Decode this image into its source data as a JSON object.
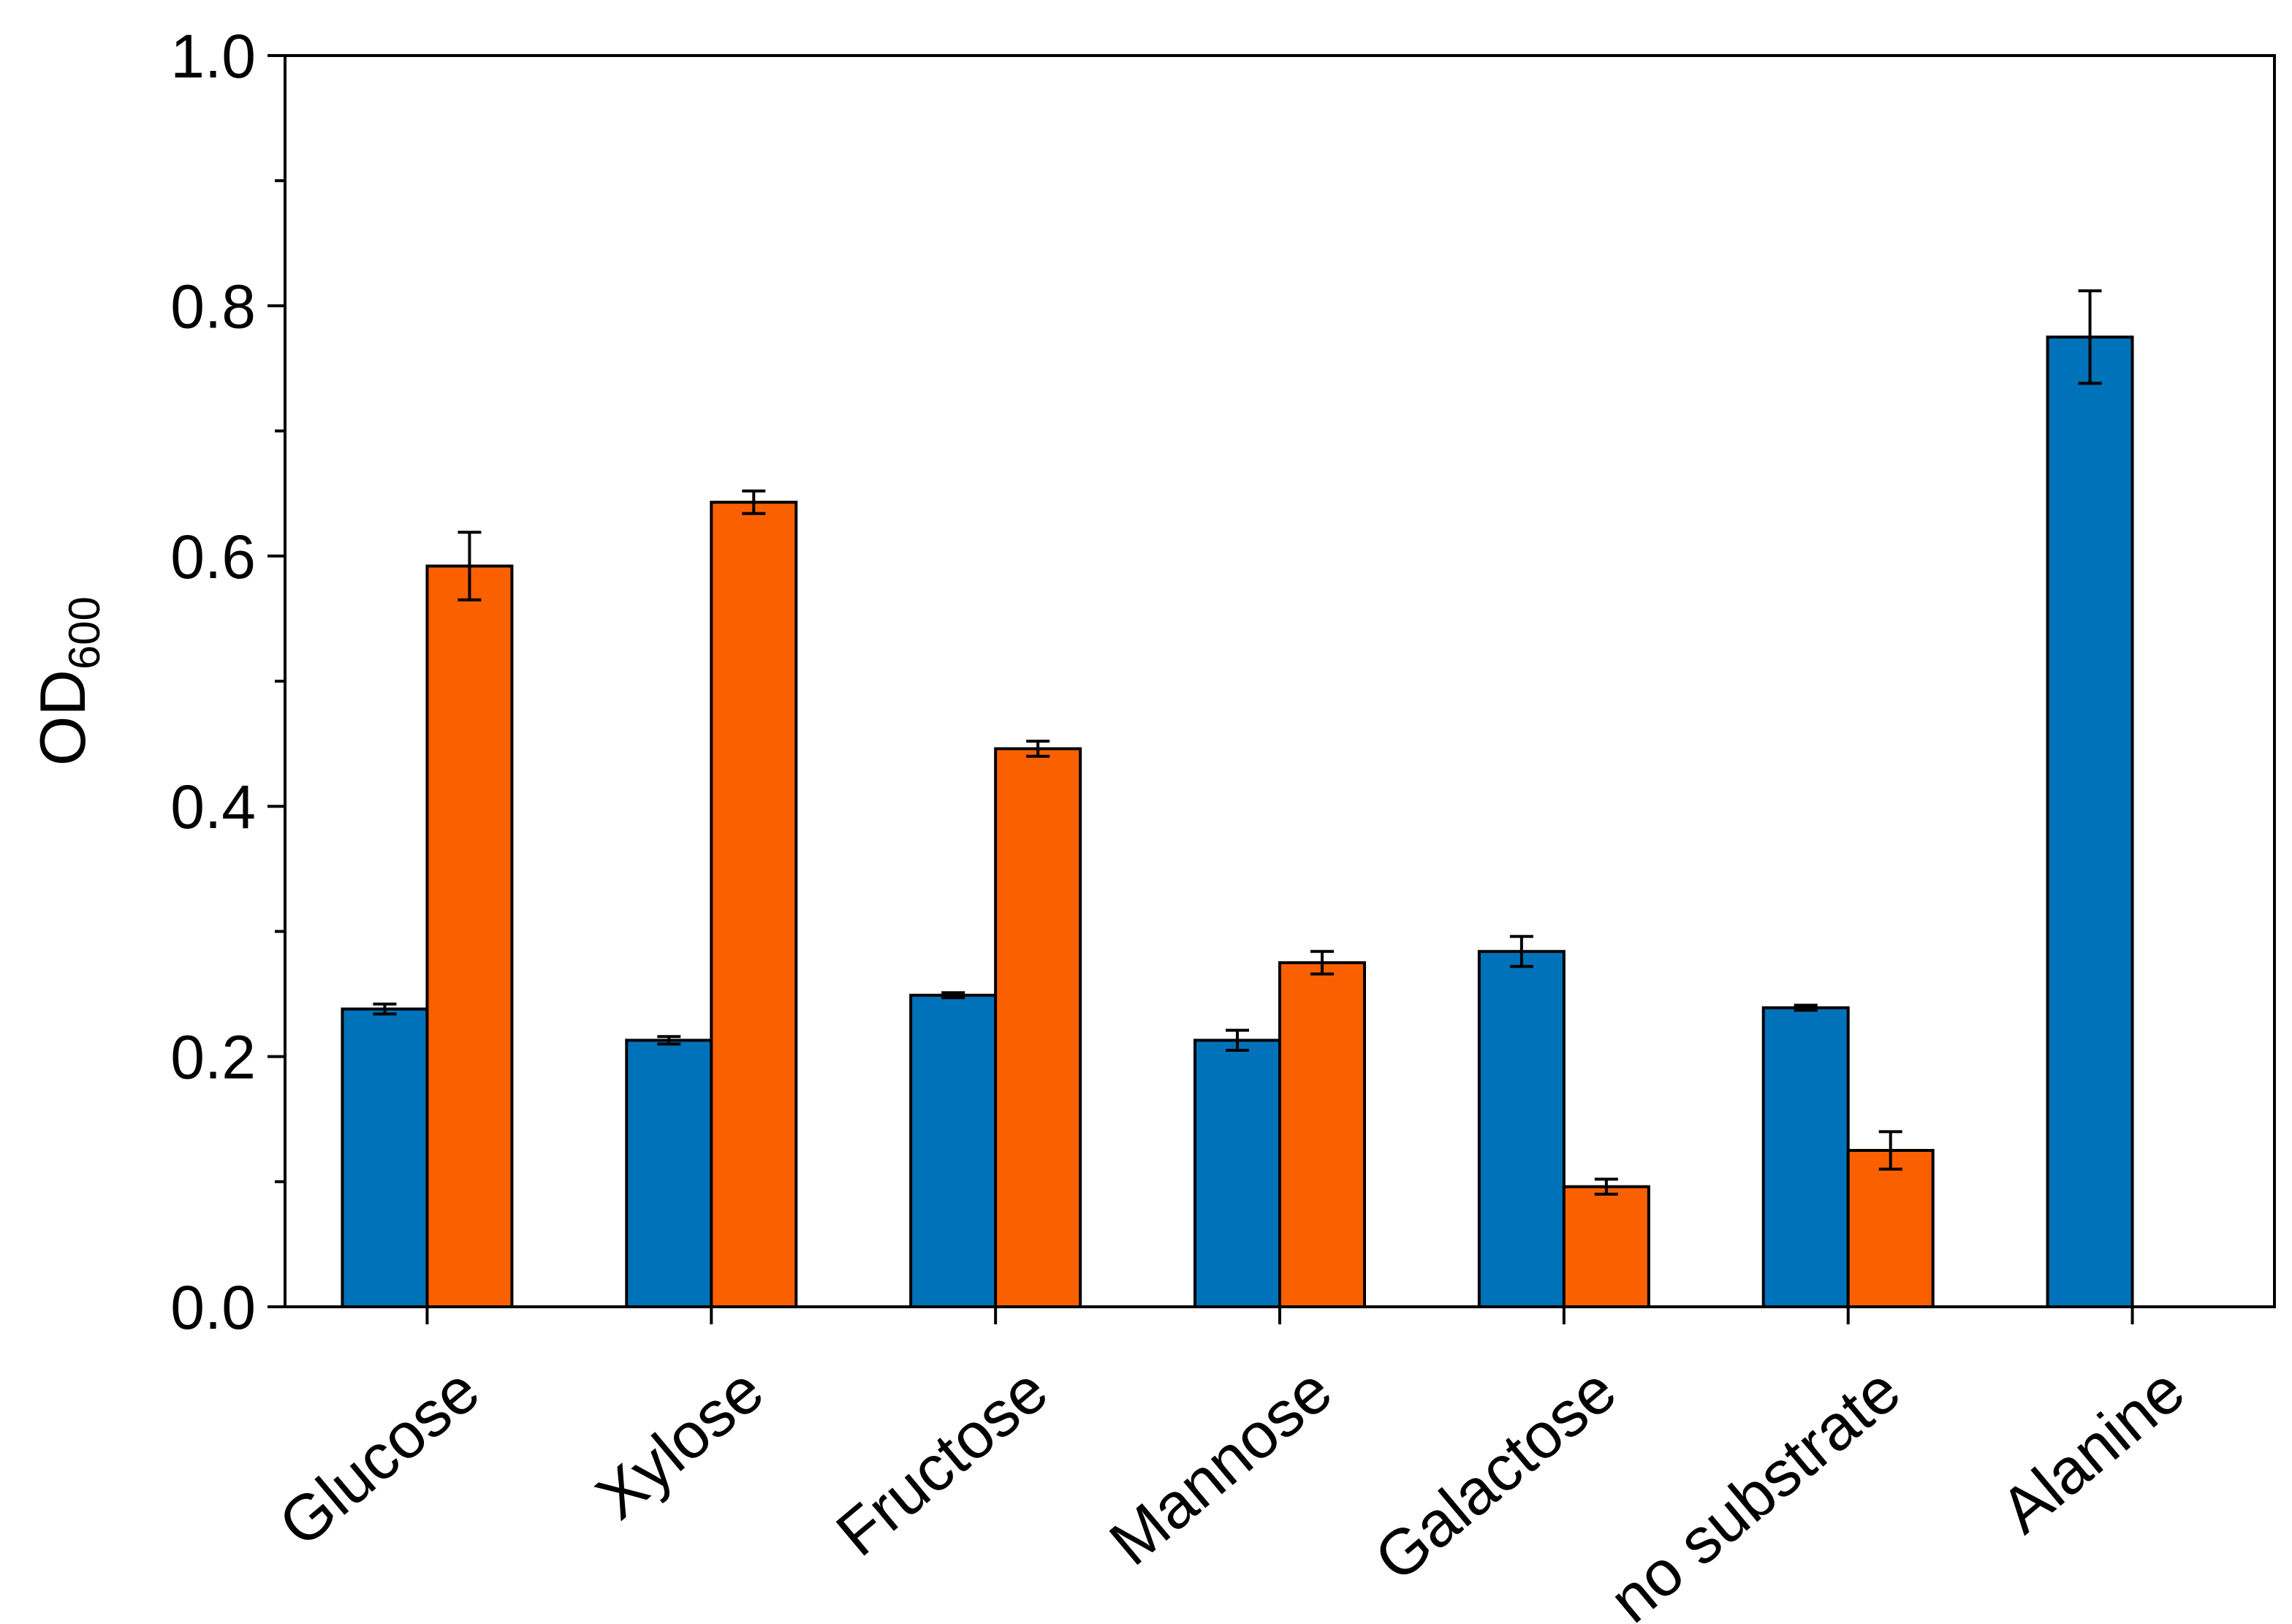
{
  "chart_data": {
    "type": "bar",
    "ylabel": {
      "main": "OD",
      "sub": "600"
    },
    "categories": [
      "Glucose",
      "Xylose",
      "Fructose",
      "Mannose",
      "Galactose",
      "no substrate",
      "Alanine"
    ],
    "series": [
      {
        "color": "#0072b9",
        "values": [
          0.238,
          0.213,
          0.249,
          0.213,
          0.284,
          0.239,
          0.775
        ],
        "errors": [
          0.004,
          0.003,
          0.002,
          0.008,
          0.012,
          0.002,
          0.037
        ]
      },
      {
        "color": "#fa6000",
        "values": [
          0.592,
          0.643,
          0.446,
          0.275,
          0.096,
          0.125,
          null
        ],
        "errors": [
          0.027,
          0.009,
          0.006,
          0.009,
          0.006,
          0.015,
          null
        ]
      }
    ],
    "ylim": [
      0,
      1
    ],
    "yticks": [
      {
        "value": 0,
        "label": "0.0"
      },
      0.2,
      0.4,
      0.6,
      0.8,
      {
        "value": 1,
        "label": "1.0"
      }
    ],
    "yminor_ticks": [
      0.1,
      0.3,
      0.5,
      0.7,
      0.9
    ]
  }
}
